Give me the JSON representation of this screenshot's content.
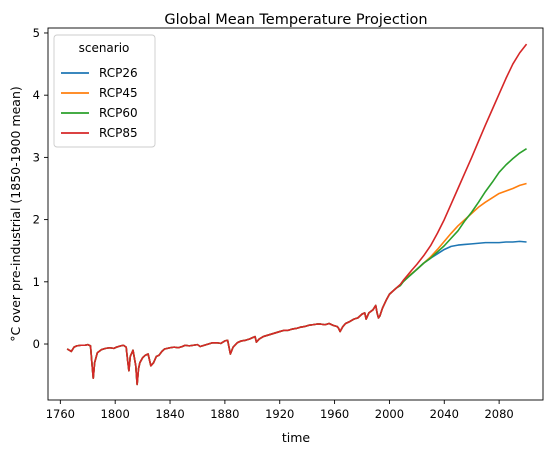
{
  "chart_data": {
    "type": "line",
    "title": "Global Mean Temperature Projection",
    "xlabel": "time",
    "ylabel": "°C over pre-industrial (1850-1900 mean)",
    "xlim": [
      1751,
      2112
    ],
    "ylim": [
      -0.9,
      5.08
    ],
    "xticks": [
      1760,
      1800,
      1840,
      1880,
      1920,
      1960,
      2000,
      2040,
      2080
    ],
    "yticks": [
      0,
      1,
      2,
      3,
      4,
      5
    ],
    "legend": {
      "title": "scenario",
      "placement": "top-left"
    },
    "historical": {
      "x": [
        1765,
        1768,
        1770,
        1772,
        1775,
        1778,
        1780,
        1782,
        1783,
        1784,
        1785,
        1787,
        1790,
        1793,
        1796,
        1799,
        1801,
        1804,
        1806,
        1808,
        1809,
        1810,
        1811,
        1813,
        1815,
        1816,
        1817,
        1818,
        1820,
        1822,
        1824,
        1826,
        1828,
        1830,
        1832,
        1834,
        1836,
        1838,
        1840,
        1843,
        1846,
        1849,
        1851,
        1854,
        1857,
        1860,
        1862,
        1865,
        1868,
        1871,
        1874,
        1877,
        1880,
        1882,
        1883,
        1884,
        1886,
        1889,
        1892,
        1895,
        1898,
        1900,
        1902,
        1903,
        1905,
        1908,
        1911,
        1914,
        1917,
        1920,
        1923,
        1926,
        1929,
        1932,
        1935,
        1938,
        1941,
        1944,
        1947,
        1950,
        1953,
        1956,
        1959,
        1962,
        1963,
        1964,
        1966,
        1968,
        1971,
        1974,
        1977,
        1980,
        1982,
        1983,
        1985,
        1988,
        1990,
        1991,
        1992,
        1993,
        1995,
        1998,
        2000,
        2003,
        2005
      ],
      "y": [
        -0.08,
        -0.12,
        -0.05,
        -0.03,
        -0.02,
        -0.02,
        -0.01,
        -0.03,
        -0.3,
        -0.55,
        -0.3,
        -0.14,
        -0.09,
        -0.07,
        -0.06,
        -0.07,
        -0.05,
        -0.03,
        -0.02,
        -0.05,
        -0.25,
        -0.43,
        -0.2,
        -0.1,
        -0.35,
        -0.65,
        -0.4,
        -0.3,
        -0.22,
        -0.18,
        -0.16,
        -0.35,
        -0.3,
        -0.2,
        -0.18,
        -0.12,
        -0.08,
        -0.07,
        -0.06,
        -0.05,
        -0.06,
        -0.04,
        -0.02,
        -0.03,
        -0.02,
        -0.01,
        -0.04,
        -0.02,
        0.0,
        0.02,
        0.02,
        0.01,
        0.05,
        0.06,
        -0.05,
        -0.16,
        -0.05,
        0.02,
        0.05,
        0.06,
        0.08,
        0.1,
        0.12,
        0.03,
        0.08,
        0.12,
        0.14,
        0.16,
        0.18,
        0.2,
        0.22,
        0.22,
        0.24,
        0.25,
        0.27,
        0.28,
        0.3,
        0.31,
        0.32,
        0.32,
        0.31,
        0.33,
        0.3,
        0.28,
        0.25,
        0.2,
        0.28,
        0.33,
        0.36,
        0.4,
        0.42,
        0.48,
        0.5,
        0.4,
        0.5,
        0.55,
        0.62,
        0.5,
        0.42,
        0.45,
        0.58,
        0.72,
        0.8,
        0.86,
        0.9
      ]
    },
    "series": [
      {
        "name": "RCP26",
        "color": "#1f77b4",
        "x": [
          2005,
          2008,
          2010,
          2013,
          2016,
          2020,
          2025,
          2030,
          2035,
          2040,
          2045,
          2050,
          2055,
          2060,
          2065,
          2070,
          2075,
          2080,
          2085,
          2090,
          2095,
          2100
        ],
        "y": [
          0.9,
          0.95,
          1.0,
          1.07,
          1.12,
          1.2,
          1.3,
          1.38,
          1.45,
          1.52,
          1.57,
          1.59,
          1.6,
          1.61,
          1.62,
          1.63,
          1.63,
          1.63,
          1.64,
          1.64,
          1.65,
          1.64
        ]
      },
      {
        "name": "RCP45",
        "color": "#ff7f0e",
        "x": [
          2005,
          2008,
          2010,
          2013,
          2016,
          2020,
          2025,
          2030,
          2035,
          2040,
          2045,
          2050,
          2055,
          2060,
          2065,
          2070,
          2075,
          2080,
          2085,
          2090,
          2095,
          2100
        ],
        "y": [
          0.9,
          0.95,
          1.0,
          1.07,
          1.13,
          1.2,
          1.3,
          1.4,
          1.52,
          1.65,
          1.78,
          1.9,
          2.0,
          2.1,
          2.2,
          2.28,
          2.35,
          2.42,
          2.46,
          2.5,
          2.55,
          2.58
        ]
      },
      {
        "name": "RCP60",
        "color": "#2ca02c",
        "x": [
          2005,
          2008,
          2010,
          2013,
          2016,
          2020,
          2025,
          2030,
          2035,
          2040,
          2045,
          2050,
          2055,
          2060,
          2065,
          2070,
          2075,
          2080,
          2085,
          2090,
          2095,
          2100
        ],
        "y": [
          0.9,
          0.94,
          1.0,
          1.06,
          1.12,
          1.2,
          1.3,
          1.38,
          1.48,
          1.58,
          1.7,
          1.82,
          1.98,
          2.12,
          2.28,
          2.45,
          2.6,
          2.76,
          2.88,
          2.98,
          3.07,
          3.14
        ]
      },
      {
        "name": "RCP85",
        "color": "#d62728",
        "x": [
          2005,
          2008,
          2010,
          2013,
          2016,
          2020,
          2025,
          2030,
          2035,
          2040,
          2045,
          2050,
          2055,
          2060,
          2065,
          2070,
          2075,
          2080,
          2085,
          2090,
          2095,
          2100
        ],
        "y": [
          0.9,
          0.96,
          1.02,
          1.1,
          1.18,
          1.28,
          1.42,
          1.58,
          1.78,
          2.0,
          2.25,
          2.5,
          2.75,
          3.0,
          3.26,
          3.52,
          3.77,
          4.02,
          4.27,
          4.5,
          4.68,
          4.82
        ]
      }
    ]
  }
}
